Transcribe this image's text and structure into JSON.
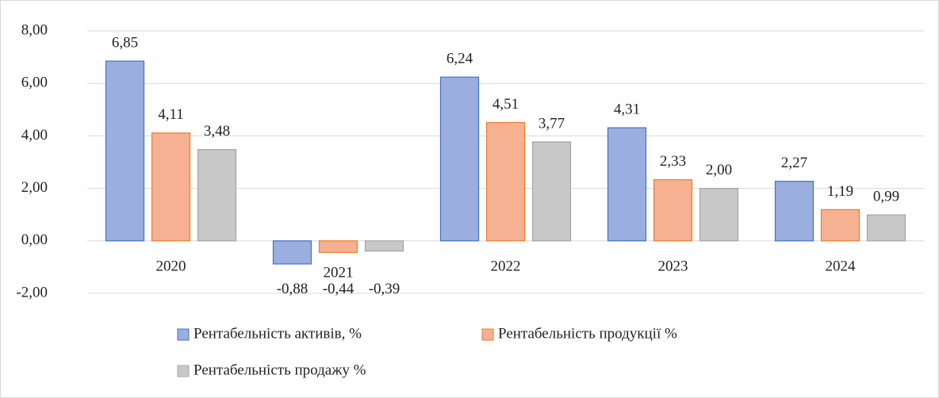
{
  "chart_data": {
    "type": "bar",
    "categories": [
      "2020",
      "2021",
      "2022",
      "2023",
      "2024"
    ],
    "series": [
      {
        "name": "Рентабельність активів, %",
        "color": "#9aaedf",
        "edge_color": "#4472c4",
        "values": [
          6.85,
          -0.88,
          6.24,
          4.31,
          2.27
        ],
        "value_labels": [
          "6,85",
          "-0,88",
          "6,24",
          "4,31",
          "2,27"
        ]
      },
      {
        "name": "Рентабельність продукції %",
        "color": "#f5b191",
        "edge_color": "#ed7d31",
        "values": [
          4.11,
          -0.44,
          4.51,
          2.33,
          1.19
        ],
        "value_labels": [
          "4,11",
          "-0,44",
          "4,51",
          "2,33",
          "1,19"
        ]
      },
      {
        "name": "Рентабельність продажу %",
        "color": "#c8c8c8",
        "edge_color": "#a5a5a5",
        "values": [
          3.48,
          -0.39,
          3.77,
          2.0,
          0.99
        ],
        "value_labels": [
          "3,48",
          "-0,39",
          "3,77",
          "2,00",
          "0,99"
        ]
      }
    ],
    "ylim": [
      -2,
      8
    ],
    "yticks": [
      {
        "value": -2,
        "label": "-2,00"
      },
      {
        "value": 0,
        "label": "0,00"
      },
      {
        "value": 2,
        "label": "2,00"
      },
      {
        "value": 4,
        "label": "4,00"
      },
      {
        "value": 6,
        "label": "6,00"
      },
      {
        "value": 8,
        "label": "8,00"
      }
    ],
    "grid": true,
    "legend": "bottom"
  }
}
